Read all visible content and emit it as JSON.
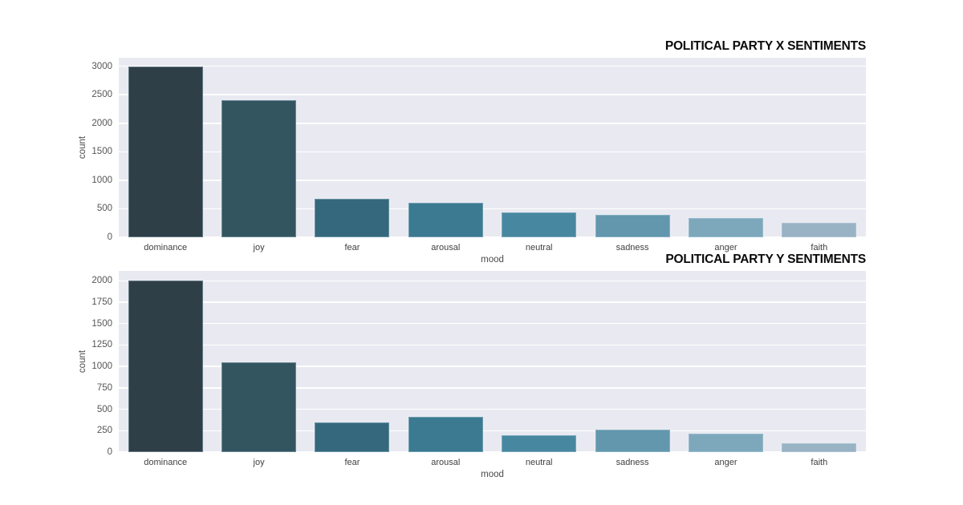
{
  "page": {
    "background": "#ffffff",
    "plot_background": "#e9eaf1",
    "grid_color": "#ffffff",
    "tick_color": "#555555",
    "title_color": "#0a0a0a"
  },
  "chart_data": [
    {
      "type": "bar",
      "title": "POLITICAL PARTY X SENTIMENTS",
      "xlabel": "mood",
      "ylabel": "count",
      "categories": [
        "dominance",
        "joy",
        "fear",
        "arousal",
        "neutral",
        "sadness",
        "anger",
        "faith"
      ],
      "values": [
        3000,
        2400,
        670,
        610,
        440,
        400,
        340,
        260
      ],
      "bar_colors": [
        "#2e3f48",
        "#33555f",
        "#35687c",
        "#3b7a90",
        "#4887a0",
        "#6297ad",
        "#7da8bc",
        "#99b3c5"
      ],
      "yticks": [
        0,
        500,
        1000,
        1500,
        2000,
        2500,
        3000
      ],
      "ylim": [
        0,
        3150
      ],
      "grid": true,
      "legend": "none",
      "title_position": "top-right"
    },
    {
      "type": "bar",
      "title": "POLITICAL PARTY Y SENTIMENTS",
      "xlabel": "mood",
      "ylabel": "count",
      "categories": [
        "dominance",
        "joy",
        "fear",
        "arousal",
        "neutral",
        "sadness",
        "anger",
        "faith"
      ],
      "values": [
        2000,
        1050,
        350,
        415,
        200,
        265,
        220,
        100
      ],
      "bar_colors": [
        "#2e3f48",
        "#33555f",
        "#35687c",
        "#3b7a90",
        "#4887a0",
        "#6297ad",
        "#7da8bc",
        "#99b3c5"
      ],
      "yticks": [
        0,
        250,
        500,
        750,
        1000,
        1250,
        1500,
        1750,
        2000
      ],
      "ylim": [
        0,
        2115
      ],
      "grid": true,
      "legend": "none",
      "title_position": "top-right"
    }
  ]
}
